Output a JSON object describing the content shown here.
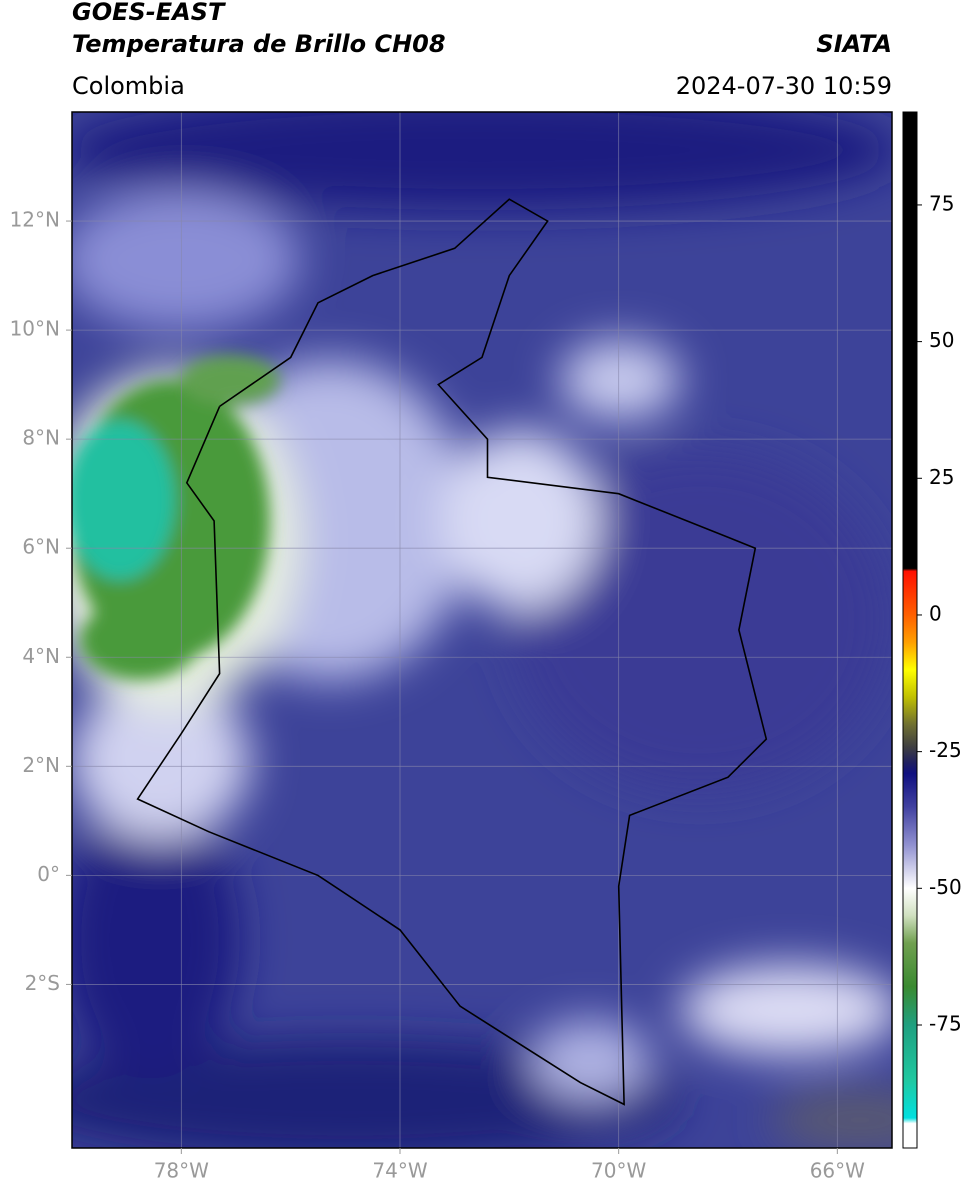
{
  "header": {
    "satellite": "GOES-EAST",
    "product": "Temperatura de Brillo CH08",
    "source": "SIATA",
    "region": "Colombia",
    "datetime": "2024-07-30 10:59"
  },
  "map": {
    "xlim": [
      -80,
      -65
    ],
    "ylim": [
      -5,
      14
    ],
    "xticks": [
      {
        "value": -78,
        "label": "78°W"
      },
      {
        "value": -74,
        "label": "74°W"
      },
      {
        "value": -70,
        "label": "70°W"
      },
      {
        "value": -66,
        "label": "66°W"
      }
    ],
    "yticks": [
      {
        "value": 12,
        "label": "12°N"
      },
      {
        "value": 10,
        "label": "10°N"
      },
      {
        "value": 8,
        "label": "8°N"
      },
      {
        "value": 6,
        "label": "6°N"
      },
      {
        "value": 4,
        "label": "4°N"
      },
      {
        "value": 2,
        "label": "2°N"
      },
      {
        "value": 0,
        "label": "0°"
      },
      {
        "value": -2,
        "label": "2°S"
      }
    ],
    "grid": true
  },
  "colorbar": {
    "lim": [
      -97.5,
      92
    ],
    "ticks": [
      75,
      50,
      25,
      0,
      -25,
      -50,
      -75
    ],
    "stops": [
      {
        "value": 92,
        "color": "#000000"
      },
      {
        "value": 8.5,
        "color": "#000000"
      },
      {
        "value": 8,
        "color": "#ff1000"
      },
      {
        "value": 0,
        "color": "#ff6000"
      },
      {
        "value": -5,
        "color": "#ffa000"
      },
      {
        "value": -10,
        "color": "#ffff00"
      },
      {
        "value": -15,
        "color": "#c0c000"
      },
      {
        "value": -20,
        "color": "#707030"
      },
      {
        "value": -24,
        "color": "#404040"
      },
      {
        "value": -27,
        "color": "#202060"
      },
      {
        "value": -29,
        "color": "#101080"
      },
      {
        "value": -35,
        "color": "#4040a0"
      },
      {
        "value": -42,
        "color": "#9090d0"
      },
      {
        "value": -50,
        "color": "#ffffff"
      },
      {
        "value": -55,
        "color": "#d0e0c0"
      },
      {
        "value": -60,
        "color": "#70a050"
      },
      {
        "value": -68,
        "color": "#3a8a30"
      },
      {
        "value": -75,
        "color": "#20a080"
      },
      {
        "value": -85,
        "color": "#20c8a0"
      },
      {
        "value": -92,
        "color": "#00e0e0"
      },
      {
        "value": -93,
        "color": "#ffffff"
      },
      {
        "value": -97.5,
        "color": "#ffffff"
      }
    ]
  }
}
